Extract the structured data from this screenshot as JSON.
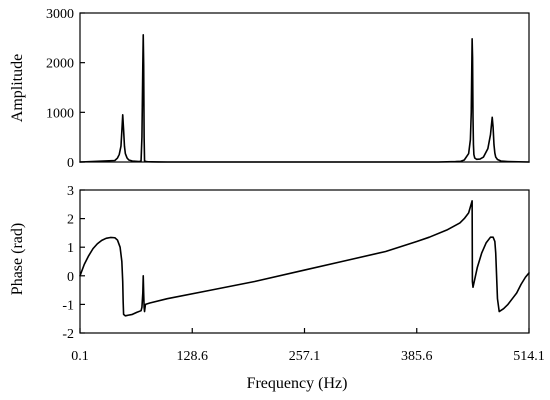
{
  "chart_data": [
    {
      "type": "line",
      "ylabel": "Amplitude",
      "xlim": [
        0.1,
        514.1
      ],
      "ylim": [
        0,
        3000
      ],
      "yticks": [
        0,
        1000,
        2000,
        3000
      ],
      "grid": false,
      "series": [
        {
          "x": [
            0.1,
            40,
            43,
            45,
            47,
            48,
            49,
            50,
            51,
            52,
            54,
            56,
            60,
            64,
            68,
            70,
            71,
            72,
            72.5,
            73,
            73.5,
            74,
            76,
            78,
            82,
            90,
            100,
            410,
            430,
            436,
            440,
            445,
            447,
            448,
            449,
            449.5,
            450,
            450.5,
            451,
            452,
            454,
            458,
            462,
            467,
            470,
            472,
            473,
            474,
            475,
            476,
            478,
            482,
            490,
            514.1
          ],
          "y": [
            0,
            30,
            80,
            150,
            320,
            620,
            950,
            650,
            320,
            170,
            80,
            40,
            20,
            15,
            10,
            20,
            500,
            1950,
            2560,
            1950,
            500,
            20,
            10,
            5,
            3,
            2,
            0,
            0,
            8,
            15,
            40,
            170,
            450,
            1000,
            2480,
            2100,
            900,
            350,
            150,
            80,
            55,
            60,
            100,
            270,
            550,
            900,
            700,
            350,
            180,
            100,
            50,
            20,
            10,
            0
          ]
        }
      ]
    },
    {
      "type": "line",
      "ylabel": "Phase (rad)",
      "xlabel": "Frequency (Hz)",
      "xlim": [
        0.1,
        514.1
      ],
      "ylim": [
        -2,
        3
      ],
      "xticks": [
        0.1,
        128.6,
        257.1,
        385.6,
        514.1
      ],
      "yticks": [
        -2,
        -1,
        0,
        1,
        2,
        3
      ],
      "grid": false,
      "series": [
        {
          "x": [
            0.1,
            5,
            10,
            15,
            20,
            25,
            30,
            35,
            40,
            43,
            46,
            48,
            49,
            49.5,
            50,
            52,
            55,
            60,
            65,
            70,
            71,
            72,
            72.5,
            73,
            73.5,
            74,
            75,
            80,
            100,
            150,
            200,
            257.1,
            300,
            350,
            385.6,
            400,
            420,
            435,
            440,
            445,
            449,
            449.3,
            450,
            455,
            460,
            465,
            470,
            473,
            475,
            476,
            477,
            478,
            480,
            485,
            490,
            495,
            500,
            505,
            510,
            514.1
          ],
          "y": [
            0,
            0.4,
            0.7,
            0.95,
            1.12,
            1.24,
            1.31,
            1.34,
            1.33,
            1.25,
            1.0,
            0.5,
            -0.2,
            -0.9,
            -1.35,
            -1.4,
            -1.38,
            -1.35,
            -1.28,
            -1.22,
            -1.1,
            -0.6,
            0,
            -0.6,
            -1.1,
            -1.25,
            -1.0,
            -0.95,
            -0.8,
            -0.5,
            -0.2,
            0.2,
            0.5,
            0.85,
            1.2,
            1.35,
            1.6,
            1.85,
            2.0,
            2.2,
            2.62,
            -0.2,
            -0.4,
            0.3,
            0.8,
            1.15,
            1.35,
            1.35,
            1.2,
            0.8,
            0.0,
            -0.8,
            -1.25,
            -1.15,
            -1.0,
            -0.8,
            -0.6,
            -0.3,
            -0.05,
            0.1
          ]
        }
      ]
    }
  ]
}
